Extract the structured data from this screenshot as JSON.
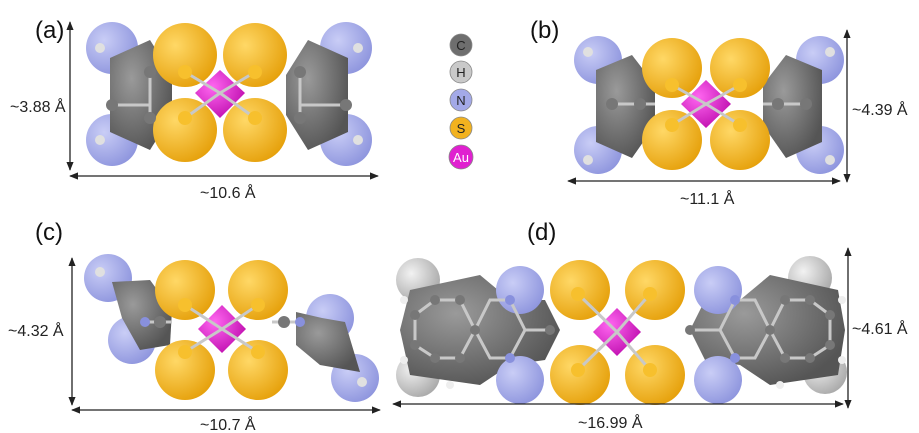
{
  "colors": {
    "C": "#6e6e6e",
    "H": "#c9c9c9",
    "N": "#a3a9e8",
    "S": "#f2b21f",
    "Au": "#e020d0",
    "arrow": "#222222"
  },
  "legend": [
    {
      "element": "C",
      "label": "C"
    },
    {
      "element": "H",
      "label": "H"
    },
    {
      "element": "N",
      "label": "N"
    },
    {
      "element": "S",
      "label": "S"
    },
    {
      "element": "Au",
      "label": "Au"
    }
  ],
  "panels": [
    {
      "id": "a",
      "label": "(a)",
      "height_label": "~3.88 Å",
      "width_label": "~10.6 Å"
    },
    {
      "id": "b",
      "label": "(b)",
      "height_label": "~4.39 Å",
      "width_label": "~11.1 Å"
    },
    {
      "id": "c",
      "label": "(c)",
      "height_label": "~4.32 Å",
      "width_label": "~10.7 Å"
    },
    {
      "id": "d",
      "label": "(d)",
      "height_label": "~4.61 Å",
      "width_label": "~16.99 Å"
    }
  ]
}
